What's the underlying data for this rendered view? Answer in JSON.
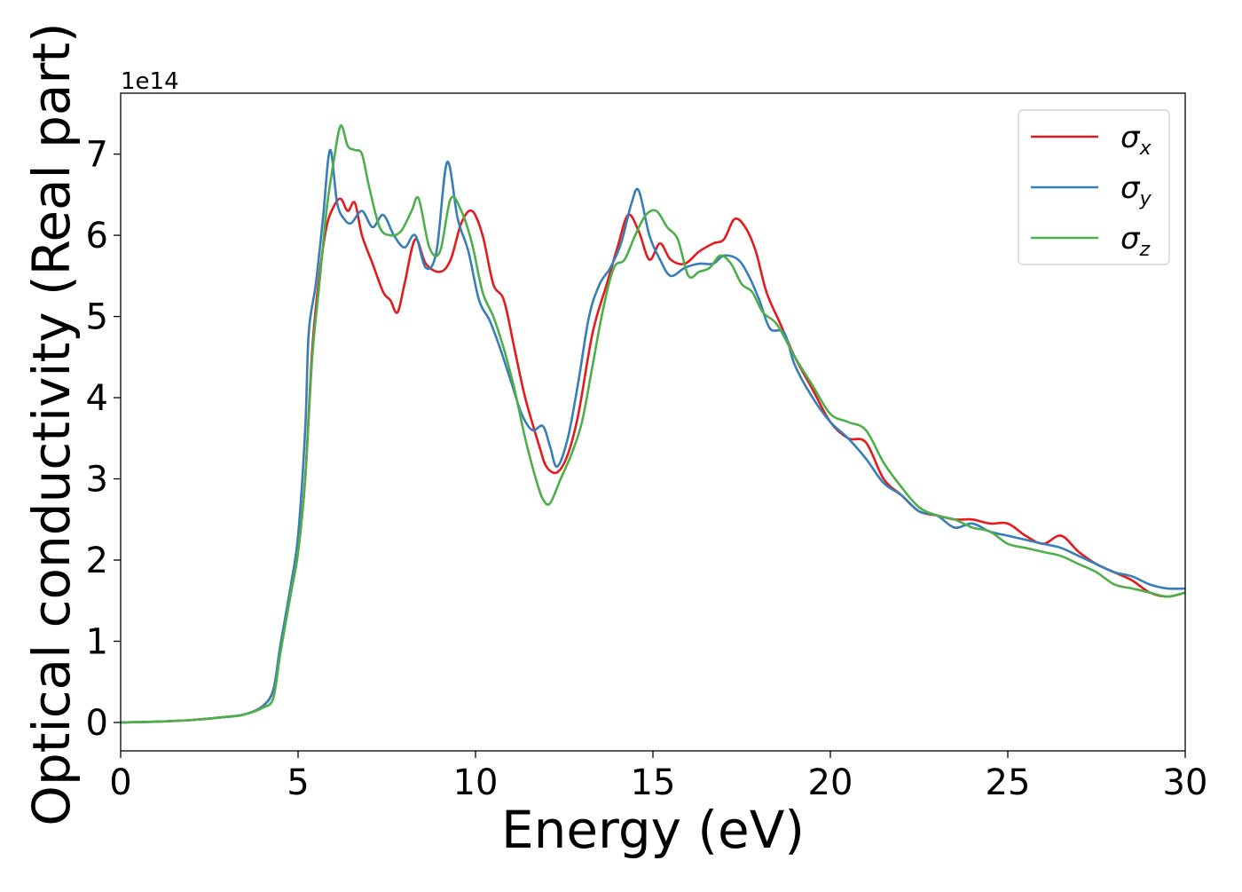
{
  "chart_data": {
    "type": "line",
    "xlabel": "Energy (eV)",
    "ylabel": "Optical conductivity (Real part)",
    "y_offset_label": "1e14",
    "xlim": [
      0,
      30
    ],
    "ylim": [
      -0.35,
      7.75
    ],
    "xticks": [
      0,
      5,
      10,
      15,
      20,
      25,
      30
    ],
    "yticks": [
      0,
      1,
      2,
      3,
      4,
      5,
      6,
      7
    ],
    "grid": false,
    "legend_position": "top-right",
    "series": [
      {
        "name": "σx",
        "symbol": "σ",
        "subscript": "x",
        "color": "#e41a1c",
        "points": [
          [
            0,
            0
          ],
          [
            1,
            0.01
          ],
          [
            2,
            0.03
          ],
          [
            3,
            0.07
          ],
          [
            3.5,
            0.1
          ],
          [
            4,
            0.2
          ],
          [
            4.3,
            0.4
          ],
          [
            4.5,
            0.9
          ],
          [
            4.8,
            1.6
          ],
          [
            5,
            2.1
          ],
          [
            5.2,
            3.0
          ],
          [
            5.4,
            4.6
          ],
          [
            5.6,
            5.5
          ],
          [
            5.8,
            6.1
          ],
          [
            6,
            6.35
          ],
          [
            6.2,
            6.45
          ],
          [
            6.4,
            6.3
          ],
          [
            6.6,
            6.4
          ],
          [
            6.8,
            6.0
          ],
          [
            7.1,
            5.65
          ],
          [
            7.4,
            5.3
          ],
          [
            7.6,
            5.2
          ],
          [
            7.8,
            5.05
          ],
          [
            8,
            5.4
          ],
          [
            8.3,
            5.95
          ],
          [
            8.6,
            5.65
          ],
          [
            9,
            5.55
          ],
          [
            9.3,
            5.7
          ],
          [
            9.6,
            6.15
          ],
          [
            9.9,
            6.3
          ],
          [
            10.2,
            6.0
          ],
          [
            10.5,
            5.4
          ],
          [
            10.8,
            5.2
          ],
          [
            11.1,
            4.6
          ],
          [
            11.4,
            4.0
          ],
          [
            11.8,
            3.4
          ],
          [
            12.0,
            3.15
          ],
          [
            12.3,
            3.08
          ],
          [
            12.6,
            3.3
          ],
          [
            12.9,
            3.8
          ],
          [
            13.3,
            4.8
          ],
          [
            13.7,
            5.4
          ],
          [
            14.0,
            5.85
          ],
          [
            14.3,
            6.25
          ],
          [
            14.6,
            6.05
          ],
          [
            14.9,
            5.7
          ],
          [
            15.2,
            5.9
          ],
          [
            15.5,
            5.7
          ],
          [
            15.9,
            5.65
          ],
          [
            16.3,
            5.8
          ],
          [
            16.7,
            5.9
          ],
          [
            17.0,
            5.95
          ],
          [
            17.3,
            6.2
          ],
          [
            17.6,
            6.1
          ],
          [
            17.9,
            5.8
          ],
          [
            18.2,
            5.3
          ],
          [
            18.6,
            4.9
          ],
          [
            19.0,
            4.5
          ],
          [
            19.5,
            4.1
          ],
          [
            20.0,
            3.7
          ],
          [
            20.5,
            3.5
          ],
          [
            21.0,
            3.45
          ],
          [
            21.5,
            3.0
          ],
          [
            22.0,
            2.8
          ],
          [
            22.5,
            2.6
          ],
          [
            23.0,
            2.55
          ],
          [
            23.5,
            2.5
          ],
          [
            24.0,
            2.5
          ],
          [
            24.5,
            2.45
          ],
          [
            25.0,
            2.45
          ],
          [
            25.5,
            2.3
          ],
          [
            26.0,
            2.2
          ],
          [
            26.5,
            2.3
          ],
          [
            27.0,
            2.1
          ],
          [
            27.5,
            1.95
          ],
          [
            28.0,
            1.85
          ],
          [
            28.5,
            1.75
          ],
          [
            29.0,
            1.6
          ],
          [
            29.5,
            1.55
          ],
          [
            30.0,
            1.6
          ]
        ]
      },
      {
        "name": "σy",
        "symbol": "σ",
        "subscript": "y",
        "color": "#377eb8",
        "points": [
          [
            0,
            0
          ],
          [
            1,
            0.01
          ],
          [
            2,
            0.03
          ],
          [
            3,
            0.07
          ],
          [
            3.5,
            0.1
          ],
          [
            4,
            0.2
          ],
          [
            4.3,
            0.4
          ],
          [
            4.5,
            0.95
          ],
          [
            4.8,
            1.7
          ],
          [
            5,
            2.3
          ],
          [
            5.2,
            3.6
          ],
          [
            5.3,
            4.8
          ],
          [
            5.5,
            5.4
          ],
          [
            5.7,
            6.2
          ],
          [
            5.9,
            7.05
          ],
          [
            6.1,
            6.4
          ],
          [
            6.3,
            6.2
          ],
          [
            6.5,
            6.15
          ],
          [
            6.8,
            6.3
          ],
          [
            7.1,
            6.1
          ],
          [
            7.4,
            6.25
          ],
          [
            7.7,
            6.0
          ],
          [
            8.0,
            5.85
          ],
          [
            8.3,
            6.0
          ],
          [
            8.6,
            5.6
          ],
          [
            8.9,
            5.8
          ],
          [
            9.2,
            6.9
          ],
          [
            9.5,
            6.2
          ],
          [
            9.8,
            5.8
          ],
          [
            10.1,
            5.2
          ],
          [
            10.4,
            4.95
          ],
          [
            10.7,
            4.6
          ],
          [
            11.0,
            4.2
          ],
          [
            11.3,
            3.8
          ],
          [
            11.6,
            3.6
          ],
          [
            11.9,
            3.65
          ],
          [
            12.1,
            3.4
          ],
          [
            12.3,
            3.15
          ],
          [
            12.6,
            3.5
          ],
          [
            12.9,
            4.2
          ],
          [
            13.2,
            5.0
          ],
          [
            13.5,
            5.4
          ],
          [
            13.8,
            5.6
          ],
          [
            14.1,
            5.9
          ],
          [
            14.4,
            6.4
          ],
          [
            14.6,
            6.55
          ],
          [
            14.9,
            6.0
          ],
          [
            15.2,
            5.7
          ],
          [
            15.5,
            5.5
          ],
          [
            15.9,
            5.6
          ],
          [
            16.3,
            5.65
          ],
          [
            16.7,
            5.65
          ],
          [
            17.0,
            5.75
          ],
          [
            17.4,
            5.7
          ],
          [
            17.7,
            5.5
          ],
          [
            18.0,
            5.2
          ],
          [
            18.3,
            4.85
          ],
          [
            18.7,
            4.8
          ],
          [
            19.0,
            4.4
          ],
          [
            19.5,
            4.0
          ],
          [
            20.0,
            3.7
          ],
          [
            20.5,
            3.5
          ],
          [
            21.0,
            3.25
          ],
          [
            21.5,
            2.95
          ],
          [
            22.0,
            2.8
          ],
          [
            22.5,
            2.6
          ],
          [
            23.0,
            2.55
          ],
          [
            23.5,
            2.4
          ],
          [
            24.0,
            2.45
          ],
          [
            24.5,
            2.35
          ],
          [
            25.0,
            2.3
          ],
          [
            25.5,
            2.25
          ],
          [
            26.0,
            2.2
          ],
          [
            26.5,
            2.15
          ],
          [
            27.0,
            2.05
          ],
          [
            27.5,
            1.95
          ],
          [
            28.0,
            1.85
          ],
          [
            28.5,
            1.8
          ],
          [
            29.0,
            1.7
          ],
          [
            29.5,
            1.65
          ],
          [
            30.0,
            1.65
          ]
        ]
      },
      {
        "name": "σz",
        "symbol": "σ",
        "subscript": "z",
        "color": "#4daf4a",
        "points": [
          [
            0,
            0
          ],
          [
            1,
            0.01
          ],
          [
            2,
            0.03
          ],
          [
            3,
            0.07
          ],
          [
            3.5,
            0.1
          ],
          [
            4,
            0.18
          ],
          [
            4.3,
            0.3
          ],
          [
            4.5,
            0.85
          ],
          [
            4.8,
            1.6
          ],
          [
            5,
            2.1
          ],
          [
            5.2,
            3.0
          ],
          [
            5.4,
            4.5
          ],
          [
            5.6,
            5.4
          ],
          [
            5.8,
            6.3
          ],
          [
            6.0,
            6.9
          ],
          [
            6.2,
            7.35
          ],
          [
            6.4,
            7.1
          ],
          [
            6.6,
            7.05
          ],
          [
            6.8,
            7.0
          ],
          [
            7.0,
            6.6
          ],
          [
            7.3,
            6.1
          ],
          [
            7.6,
            6.0
          ],
          [
            7.9,
            6.05
          ],
          [
            8.2,
            6.3
          ],
          [
            8.4,
            6.45
          ],
          [
            8.7,
            5.85
          ],
          [
            9.0,
            5.8
          ],
          [
            9.3,
            6.45
          ],
          [
            9.6,
            6.3
          ],
          [
            9.9,
            5.9
          ],
          [
            10.2,
            5.3
          ],
          [
            10.5,
            5.0
          ],
          [
            10.8,
            4.6
          ],
          [
            11.1,
            4.1
          ],
          [
            11.4,
            3.5
          ],
          [
            11.7,
            3.0
          ],
          [
            11.9,
            2.75
          ],
          [
            12.1,
            2.7
          ],
          [
            12.4,
            3.0
          ],
          [
            12.7,
            3.3
          ],
          [
            13.0,
            3.7
          ],
          [
            13.3,
            4.4
          ],
          [
            13.6,
            5.1
          ],
          [
            13.9,
            5.6
          ],
          [
            14.2,
            5.7
          ],
          [
            14.5,
            6.0
          ],
          [
            14.8,
            6.25
          ],
          [
            15.1,
            6.3
          ],
          [
            15.4,
            6.1
          ],
          [
            15.7,
            5.95
          ],
          [
            16.0,
            5.5
          ],
          [
            16.3,
            5.55
          ],
          [
            16.6,
            5.6
          ],
          [
            16.9,
            5.75
          ],
          [
            17.2,
            5.65
          ],
          [
            17.5,
            5.4
          ],
          [
            17.8,
            5.3
          ],
          [
            18.1,
            5.05
          ],
          [
            18.5,
            4.9
          ],
          [
            19.0,
            4.5
          ],
          [
            19.5,
            4.15
          ],
          [
            20.0,
            3.8
          ],
          [
            20.5,
            3.7
          ],
          [
            21.0,
            3.6
          ],
          [
            21.5,
            3.2
          ],
          [
            22.0,
            2.9
          ],
          [
            22.5,
            2.65
          ],
          [
            23.0,
            2.55
          ],
          [
            23.5,
            2.5
          ],
          [
            24.0,
            2.4
          ],
          [
            24.5,
            2.35
          ],
          [
            25.0,
            2.2
          ],
          [
            25.5,
            2.15
          ],
          [
            26.0,
            2.1
          ],
          [
            26.5,
            2.05
          ],
          [
            27.0,
            1.95
          ],
          [
            27.5,
            1.85
          ],
          [
            28.0,
            1.7
          ],
          [
            28.5,
            1.65
          ],
          [
            29.0,
            1.6
          ],
          [
            29.5,
            1.55
          ],
          [
            30.0,
            1.6
          ]
        ]
      }
    ]
  }
}
